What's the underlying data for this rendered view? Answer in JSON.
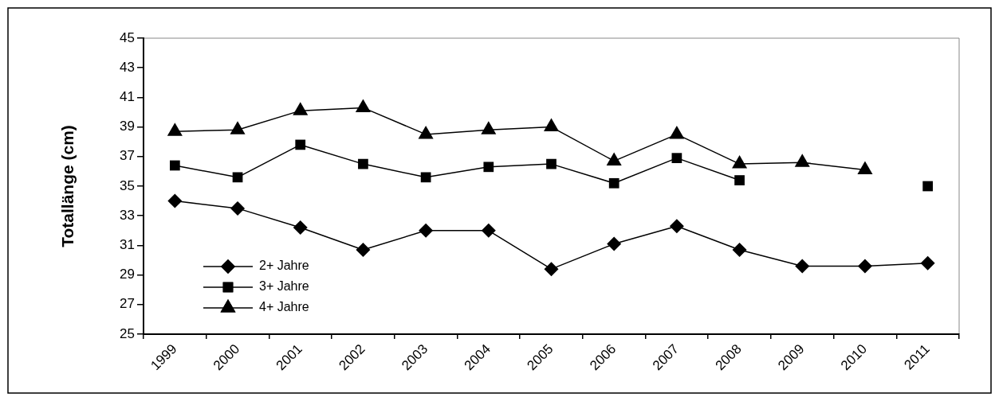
{
  "chart_data": {
    "type": "line",
    "ylabel": "Totallänge (cm)",
    "categories": [
      "1999",
      "2000",
      "2001",
      "2002",
      "2003",
      "2004",
      "2005",
      "2006",
      "2007",
      "2008",
      "2009",
      "2010",
      "2011"
    ],
    "series": [
      {
        "name": "2+ Jahre",
        "color": "#000000",
        "marker": "diamond",
        "values": [
          34.0,
          33.5,
          32.2,
          30.7,
          32.0,
          32.0,
          29.4,
          31.1,
          32.3,
          30.7,
          29.6,
          29.6,
          29.8
        ]
      },
      {
        "name": "3+ Jahre",
        "color": "#000000",
        "marker": "square",
        "values": [
          36.4,
          35.6,
          37.8,
          36.5,
          35.6,
          36.3,
          36.5,
          35.2,
          36.9,
          35.4,
          null,
          null,
          35.0
        ]
      },
      {
        "name": "4+ Jahre",
        "color": "#000000",
        "marker": "triangle",
        "values": [
          38.7,
          38.8,
          40.1,
          40.3,
          38.5,
          38.8,
          39.0,
          36.7,
          38.5,
          36.5,
          36.6,
          36.1,
          null
        ]
      }
    ],
    "ylim": [
      25,
      45
    ],
    "yticks": [
      25,
      27,
      29,
      31,
      33,
      35,
      37,
      39,
      41,
      43,
      45
    ],
    "grid": false,
    "legend": "bottom left",
    "line_style": "solid"
  }
}
